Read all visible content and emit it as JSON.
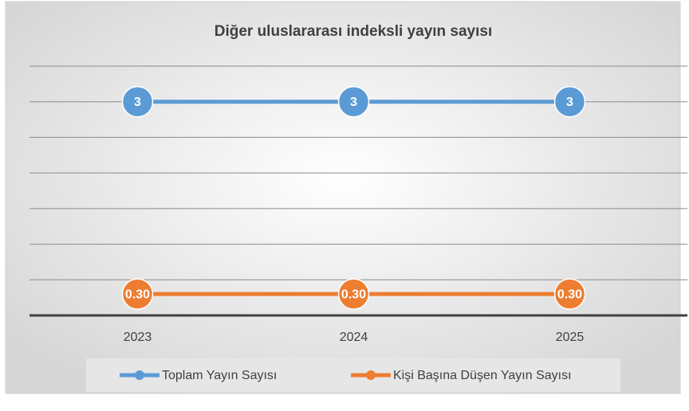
{
  "chart_data": {
    "type": "line",
    "title": "Diğer uluslararası indeksli yayın sayısı",
    "categories": [
      "2023",
      "2024",
      "2025"
    ],
    "series": [
      {
        "name": "Toplam Yayın Sayısı",
        "color": "#5b9bd5",
        "values": [
          3,
          3,
          3
        ]
      },
      {
        "name": "Kişi Başına Düşen Yayın Sayısı",
        "color": "#ed7d31",
        "values": [
          0.3,
          0.3,
          0.3
        ],
        "value_labels": [
          "0.30",
          "0.30",
          "0.30"
        ]
      }
    ],
    "ylim": [
      0,
      3.5
    ],
    "yticks": [
      0,
      0.5,
      1,
      1.5,
      2,
      2.5,
      3,
      3.5
    ],
    "grid": true,
    "legend": "bottom"
  }
}
